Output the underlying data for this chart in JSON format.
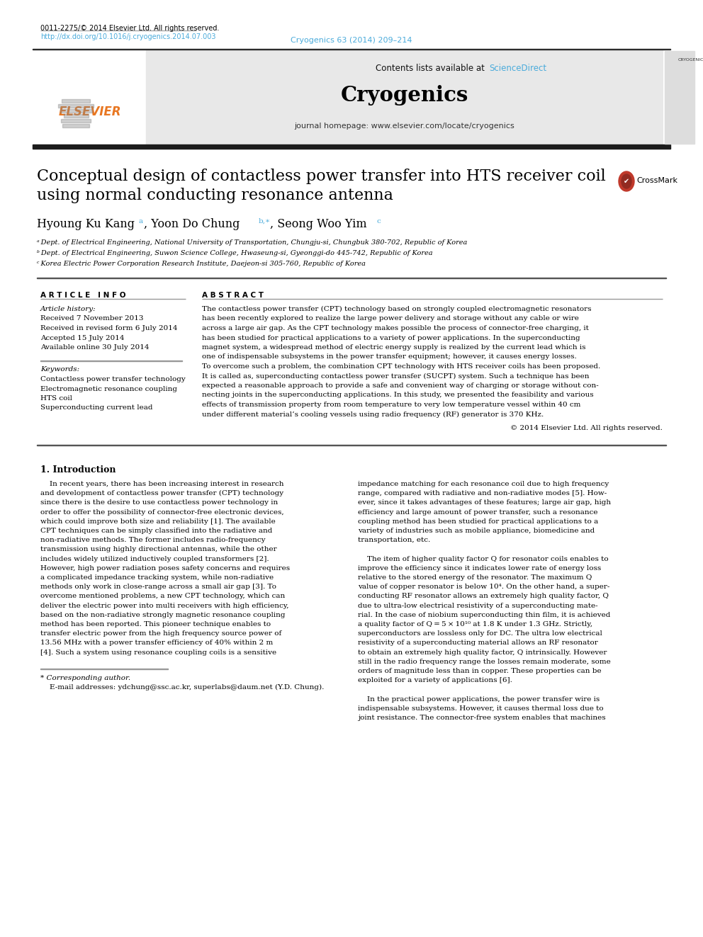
{
  "page_title": "Cryogenics 63 (2014) 209–214",
  "journal_name": "Cryogenics",
  "journal_url": "journal homepage: www.elsevier.com/locate/cryogenics",
  "contents_line": "Contents lists available at ",
  "science_direct": "ScienceDirect",
  "paper_title_line1": "Conceptual design of contactless power transfer into HTS receiver coil",
  "paper_title_line2": "using normal conducting resonance antenna",
  "author_line": "Hyoung Ku Kang",
  "author2": "Yoon Do Chung",
  "author3": "Seong Woo Yim",
  "affil_a": "ᵃ Dept. of Electrical Engineering, National University of Transportation, Chungju-si, Chungbuk 380-702, Republic of Korea",
  "affil_b": "ᵇ Dept. of Electrical Engineering, Suwon Science College, Hwaseung-si, Gyeonggi-do 445-742, Republic of Korea",
  "affil_c": "ᶜ Korea Electric Power Corporation Research Institute, Daejeon-si 305-760, Republic of Korea",
  "article_info_header": "A R T I C L E   I N F O",
  "abstract_header": "A B S T R A C T",
  "article_history_label": "Article history:",
  "received1": "Received 7 November 2013",
  "received2": "Received in revised form 6 July 2014",
  "accepted": "Accepted 15 July 2014",
  "available": "Available online 30 July 2014",
  "keywords_label": "Keywords:",
  "keyword1": "Contactless power transfer technology",
  "keyword2": "Electromagnetic resonance coupling",
  "keyword3": "HTS coil",
  "keyword4": "Superconducting current lead",
  "abstract_lines": [
    "The contactless power transfer (CPT) technology based on strongly coupled electromagnetic resonators",
    "has been recently explored to realize the large power delivery and storage without any cable or wire",
    "across a large air gap. As the CPT technology makes possible the process of connector-free charging, it",
    "has been studied for practical applications to a variety of power applications. In the superconducting",
    "magnet system, a widespread method of electric energy supply is realized by the current lead which is",
    "one of indispensable subsystems in the power transfer equipment; however, it causes energy losses.",
    "To overcome such a problem, the combination CPT technology with HTS receiver coils has been proposed.",
    "It is called as, superconducting contactless power transfer (SUCPT) system. Such a technique has been",
    "expected a reasonable approach to provide a safe and convenient way of charging or storage without con-",
    "necting joints in the superconducting applications. In this study, we presented the feasibility and various",
    "effects of transmission property from room temperature to very low temperature vessel within 40 cm",
    "under different material’s cooling vessels using radio frequency (RF) generator is 370 KHz."
  ],
  "copyright": "© 2014 Elsevier Ltd. All rights reserved.",
  "intro_header": "1. Introduction",
  "left_intro_lines": [
    "    In recent years, there has been increasing interest in research",
    "and development of contactless power transfer (CPT) technology",
    "since there is the desire to use contactless power technology in",
    "order to offer the possibility of connector-free electronic devices,",
    "which could improve both size and reliability [1]. The available",
    "CPT techniques can be simply classified into the radiative and",
    "non-radiative methods. The former includes radio-frequency",
    "transmission using highly directional antennas, while the other",
    "includes widely utilized inductively coupled transformers [2].",
    "However, high power radiation poses safety concerns and requires",
    "a complicated impedance tracking system, while non-radiative",
    "methods only work in close-range across a small air gap [3]. To",
    "overcome mentioned problems, a new CPT technology, which can",
    "deliver the electric power into multi receivers with high efficiency,",
    "based on the non-radiative strongly magnetic resonance coupling",
    "method has been reported. This pioneer technique enables to",
    "transfer electric power from the high frequency source power of",
    "13.56 MHz with a power transfer efficiency of 40% within 2 m",
    "[4]. Such a system using resonance coupling coils is a sensitive"
  ],
  "right_intro_lines": [
    "impedance matching for each resonance coil due to high frequency",
    "range, compared with radiative and non-radiative modes [5]. How-",
    "ever, since it takes advantages of these features; large air gap, high",
    "efficiency and large amount of power transfer, such a resonance",
    "coupling method has been studied for practical applications to a",
    "variety of industries such as mobile appliance, biomedicine and",
    "transportation, etc.",
    "",
    "    The item of higher quality factor Q for resonator coils enables to",
    "improve the efficiency since it indicates lower rate of energy loss",
    "relative to the stored energy of the resonator. The maximum Q",
    "value of copper resonator is below 10⁴. On the other hand, a super-",
    "conducting RF resonator allows an extremely high quality factor, Q",
    "due to ultra-low electrical resistivity of a superconducting mate-",
    "rial. In the case of niobium superconducting thin film, it is achieved",
    "a quality factor of Q = 5 × 10¹⁰ at 1.8 K under 1.3 GHz. Strictly,",
    "superconductors are lossless only for DC. The ultra low electrical",
    "resistivity of a superconducting material allows an RF resonator",
    "to obtain an extremely high quality factor, Q intrinsically. However",
    "still in the radio frequency range the losses remain moderate, some",
    "orders of magnitude less than in copper. These properties can be",
    "exploited for a variety of applications [6].",
    "",
    "    In the practical power applications, the power transfer wire is",
    "indispensable subsystems. However, it causes thermal loss due to",
    "joint resistance. The connector-free system enables that machines"
  ],
  "corresponding_note": "* Corresponding author.",
  "email_note": "    E-mail addresses: ydchung@ssc.ac.kr, superlabs@daum.net (Y.D. Chung).",
  "doi_note": "http://dx.doi.org/10.1016/j.cryogenics.2014.07.003",
  "copyright_bottom": "0011-2275/© 2014 Elsevier Ltd. All rights reserved.",
  "bg_color": "#ffffff",
  "header_bg": "#e8e8e8",
  "link_color": "#4aabdb",
  "text_color": "#000000",
  "orange_color": "#e87722",
  "dark_bar_color": "#1c1c1c"
}
